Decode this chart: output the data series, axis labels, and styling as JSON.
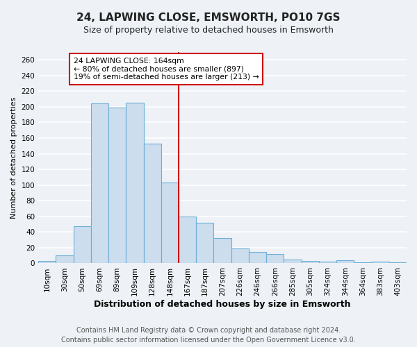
{
  "title": "24, LAPWING CLOSE, EMSWORTH, PO10 7GS",
  "subtitle": "Size of property relative to detached houses in Emsworth",
  "xlabel": "Distribution of detached houses by size in Emsworth",
  "ylabel": "Number of detached properties",
  "footer_line1": "Contains HM Land Registry data © Crown copyright and database right 2024.",
  "footer_line2": "Contains public sector information licensed under the Open Government Licence v3.0.",
  "bar_labels": [
    "10sqm",
    "30sqm",
    "50sqm",
    "69sqm",
    "89sqm",
    "109sqm",
    "128sqm",
    "148sqm",
    "167sqm",
    "187sqm",
    "207sqm",
    "226sqm",
    "246sqm",
    "266sqm",
    "285sqm",
    "305sqm",
    "324sqm",
    "344sqm",
    "364sqm",
    "383sqm",
    "403sqm"
  ],
  "bar_values": [
    3,
    10,
    47,
    204,
    199,
    205,
    153,
    103,
    60,
    52,
    32,
    19,
    15,
    12,
    5,
    3,
    2,
    4,
    1,
    2,
    1
  ],
  "bar_color": "#ccdded",
  "bar_edgecolor": "#6baed6",
  "vline_color": "#cc0000",
  "vline_index": 8,
  "annotation_title": "24 LAPWING CLOSE: 164sqm",
  "annotation_line1": "← 80% of detached houses are smaller (897)",
  "annotation_line2": "19% of semi-detached houses are larger (213) →",
  "annotation_box_edgecolor": "#cc0000",
  "annotation_box_facecolor": "#ffffff",
  "ylim": [
    0,
    270
  ],
  "yticks": [
    0,
    20,
    40,
    60,
    80,
    100,
    120,
    140,
    160,
    180,
    200,
    220,
    240,
    260
  ],
  "bg_color": "#eef2f7",
  "plot_bg_color": "#eef2f7",
  "grid_color": "#ffffff",
  "title_fontsize": 11,
  "subtitle_fontsize": 9,
  "xlabel_fontsize": 9,
  "ylabel_fontsize": 8,
  "tick_fontsize": 7.5,
  "footer_fontsize": 7,
  "footer_color": "#555555"
}
